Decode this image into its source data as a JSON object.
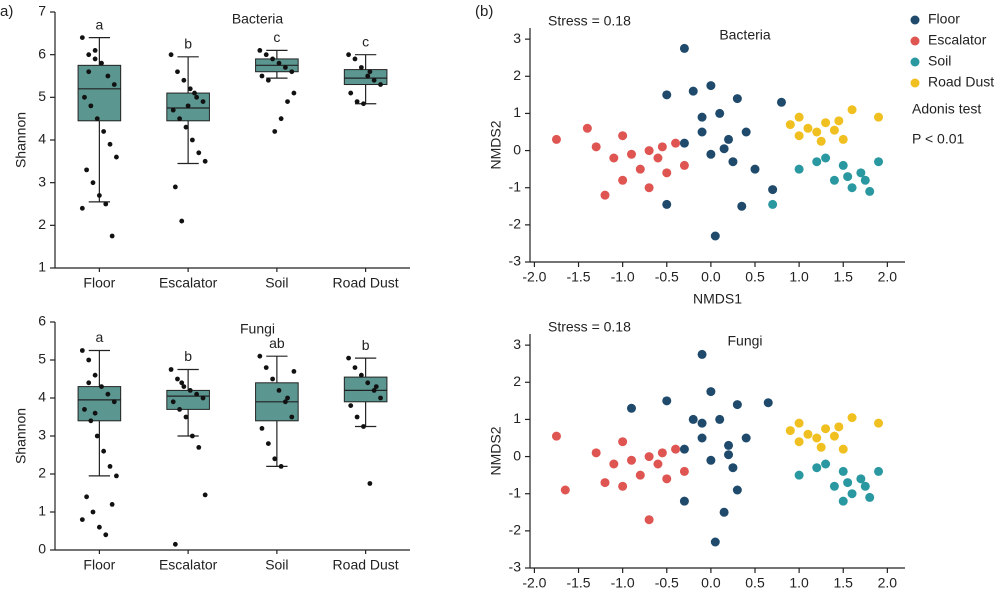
{
  "chart_data": [
    {
      "type": "box",
      "panel": "a)",
      "title": "Bacteria",
      "y_label": "Shannon",
      "categories": [
        "Floor",
        "Escalator",
        "Soil",
        "Road Dust"
      ],
      "ylim": [
        1,
        7
      ],
      "yticks": [
        1,
        2,
        3,
        4,
        5,
        6,
        7
      ],
      "color": "#5b9690",
      "boxes": {
        "whislo": [
          2.55,
          3.45,
          5.45,
          4.85
        ],
        "q1": [
          4.45,
          4.45,
          5.6,
          5.3
        ],
        "median": [
          5.2,
          4.75,
          5.75,
          5.45
        ],
        "q3": [
          5.75,
          5.1,
          5.9,
          5.65
        ],
        "whishi": [
          6.4,
          5.95,
          6.1,
          6.0
        ]
      },
      "letters": [
        "a",
        "b",
        "c",
        "c"
      ],
      "points": [
        [
          6.4,
          6.0,
          5.9,
          5.8,
          5.5,
          5.3,
          5.0,
          4.8,
          4.5,
          4.2,
          3.9,
          3.6,
          3.3,
          3.0,
          2.7,
          2.5,
          1.75,
          2.4,
          5.6,
          6.1
        ],
        [
          6.0,
          5.6,
          5.4,
          5.2,
          5.0,
          4.9,
          4.7,
          4.5,
          4.3,
          4.0,
          3.7,
          3.5,
          2.9,
          2.1,
          4.8,
          5.1
        ],
        [
          6.1,
          6.0,
          5.9,
          5.8,
          5.7,
          5.6,
          5.5,
          5.4,
          4.2,
          4.5,
          4.9,
          5.1
        ],
        [
          6.0,
          5.9,
          5.7,
          5.5,
          5.4,
          5.3,
          5.1,
          4.9,
          4.85,
          5.6
        ]
      ]
    },
    {
      "type": "box",
      "title": "Fungi",
      "y_label": "Shannon",
      "categories": [
        "Floor",
        "Escalator",
        "Soil",
        "Road Dust"
      ],
      "ylim": [
        0,
        6
      ],
      "yticks": [
        0,
        1,
        2,
        3,
        4,
        5,
        6
      ],
      "color": "#5b9690",
      "boxes": {
        "whislo": [
          1.95,
          3.0,
          2.2,
          3.25
        ],
        "q1": [
          3.4,
          3.7,
          3.4,
          3.9
        ],
        "median": [
          3.95,
          4.05,
          3.9,
          4.2
        ],
        "q3": [
          4.3,
          4.2,
          4.4,
          4.55
        ],
        "whishi": [
          5.25,
          4.75,
          5.1,
          5.05
        ]
      },
      "letters": [
        "a",
        "b",
        "ab",
        "b"
      ],
      "points": [
        [
          5.25,
          5.0,
          4.6,
          4.3,
          4.1,
          3.9,
          3.7,
          3.4,
          3.0,
          2.6,
          2.2,
          1.95,
          1.4,
          1.0,
          0.6,
          0.4,
          1.2,
          0.8,
          4.4,
          3.6
        ],
        [
          4.75,
          4.5,
          4.3,
          4.2,
          4.1,
          4.0,
          3.9,
          3.7,
          3.5,
          3.0,
          2.7,
          1.45,
          0.15,
          4.4
        ],
        [
          5.1,
          4.8,
          4.5,
          4.2,
          3.9,
          3.5,
          3.2,
          2.8,
          2.4,
          2.2,
          4.0,
          4.7
        ],
        [
          5.05,
          4.8,
          4.6,
          4.4,
          4.2,
          4.0,
          3.8,
          3.5,
          3.25,
          1.75,
          4.3
        ]
      ]
    },
    {
      "type": "scatter",
      "panel": "(b)",
      "title": "Bacteria",
      "annotation": "Stress = 0.18",
      "x_label": "NMDS1",
      "y_label": "NMDS2",
      "xlim": [
        -2.05,
        2.2
      ],
      "ylim": [
        -3,
        3.3
      ],
      "xticks": [
        {
          "value": -2,
          "label": "-2.0"
        },
        {
          "value": -1.5,
          "label": "-1.5"
        },
        {
          "value": -1,
          "label": "-1.0"
        },
        {
          "value": -0.5,
          "label": "-0.5"
        },
        {
          "value": 0,
          "label": "0.0"
        },
        {
          "value": 0.5,
          "label": "0.5"
        },
        {
          "value": 1,
          "label": "1.0"
        },
        {
          "value": 1.5,
          "label": "1.5"
        },
        {
          "value": 2,
          "label": "2.0"
        }
      ],
      "yticks": [
        -3,
        -2,
        -1,
        0,
        1,
        2,
        3
      ],
      "legend": "outside-right",
      "legend_notes": [
        "Adonis test",
        "P < 0.01"
      ],
      "series": [
        {
          "name": "Floor",
          "color": "#1f4a6b",
          "x": [
            -0.3,
            -0.5,
            -0.2,
            0.0,
            0.1,
            0.3,
            -0.1,
            0.2,
            0.4,
            -0.3,
            0.0,
            0.25,
            0.5,
            0.35,
            0.05,
            0.7,
            -0.5,
            0.8,
            -0.1,
            0.15
          ],
          "values": [
            2.75,
            1.5,
            1.6,
            1.75,
            1.0,
            1.4,
            0.5,
            0.3,
            0.5,
            0.2,
            -0.1,
            -0.3,
            -0.5,
            -1.5,
            -2.3,
            -1.05,
            -1.45,
            1.3,
            0.9,
            0.05
          ]
        },
        {
          "name": "Escalator",
          "color": "#de5552",
          "x": [
            -1.75,
            -1.4,
            -1.3,
            -1.1,
            -1.2,
            -1.0,
            -0.9,
            -0.8,
            -0.7,
            -0.6,
            -0.5,
            -0.4,
            -0.3,
            -0.7,
            -1.0,
            -0.55
          ],
          "values": [
            0.3,
            0.6,
            0.1,
            -0.2,
            -1.2,
            0.4,
            -0.1,
            -0.5,
            0.0,
            -0.2,
            -0.6,
            0.2,
            -0.4,
            -1.0,
            -0.8,
            0.1
          ]
        },
        {
          "name": "Soil",
          "color": "#2a98a0",
          "x": [
            1.0,
            1.2,
            1.4,
            1.5,
            1.6,
            1.7,
            1.8,
            1.9,
            1.3,
            1.75,
            1.55,
            0.7
          ],
          "values": [
            -0.5,
            -0.3,
            -0.8,
            -0.4,
            -1.0,
            -0.6,
            -1.1,
            -0.3,
            -0.2,
            -0.8,
            -0.7,
            -1.45
          ]
        },
        {
          "name": "Road Dust",
          "color": "#f0c020",
          "x": [
            0.9,
            1.0,
            1.1,
            1.2,
            1.3,
            1.4,
            1.6,
            1.9,
            1.5,
            1.0,
            1.25,
            1.45
          ],
          "values": [
            0.7,
            0.4,
            0.6,
            0.5,
            0.75,
            0.55,
            1.1,
            0.9,
            0.3,
            0.9,
            0.25,
            0.8
          ]
        }
      ]
    },
    {
      "type": "scatter",
      "title": "Fungi",
      "annotation": "Stress = 0.18",
      "y_label": "NMDS2",
      "xlim": [
        -2.05,
        2.2
      ],
      "ylim": [
        -3,
        3.3
      ],
      "xticks": [
        {
          "value": -2,
          "label": "-2.0"
        },
        {
          "value": -1.5,
          "label": "-1.5"
        },
        {
          "value": -1,
          "label": "-1.0"
        },
        {
          "value": -0.5,
          "label": "-0.5"
        },
        {
          "value": 0,
          "label": "0.0"
        },
        {
          "value": 0.5,
          "label": "0.5"
        },
        {
          "value": 1,
          "label": "1.0"
        },
        {
          "value": 1.5,
          "label": "1.5"
        },
        {
          "value": 2,
          "label": "2.0"
        }
      ],
      "yticks": [
        -3,
        -2,
        -1,
        0,
        1,
        2,
        3
      ],
      "series": [
        {
          "color": "#1f4a6b",
          "x": [
            -0.1,
            -0.5,
            -0.2,
            0.0,
            0.1,
            0.3,
            -0.1,
            0.2,
            0.4,
            -0.3,
            0.0,
            0.25,
            0.3,
            0.05,
            0.15,
            -0.3,
            -0.9,
            0.65,
            -0.1,
            0.2
          ],
          "values": [
            2.75,
            1.5,
            1.0,
            1.75,
            1.0,
            1.4,
            0.5,
            0.3,
            0.5,
            0.2,
            -0.1,
            -0.3,
            -0.9,
            -2.3,
            -1.5,
            -1.2,
            1.3,
            1.45,
            0.9,
            0.05
          ]
        },
        {
          "color": "#de5552",
          "x": [
            -1.75,
            -1.65,
            -1.3,
            -1.1,
            -1.2,
            -1.0,
            -0.9,
            -0.8,
            -0.7,
            -0.6,
            -0.5,
            -0.4,
            -0.3,
            -0.7,
            -1.0,
            -0.55
          ],
          "values": [
            0.55,
            -0.9,
            0.1,
            -0.2,
            -0.7,
            0.4,
            -0.1,
            -0.5,
            0.0,
            -0.2,
            -0.6,
            0.2,
            -0.4,
            -1.7,
            -0.8,
            0.1
          ]
        },
        {
          "color": "#2a98a0",
          "x": [
            1.0,
            1.2,
            1.4,
            1.5,
            1.6,
            1.7,
            1.8,
            1.9,
            1.3,
            1.75,
            1.55,
            1.5
          ],
          "values": [
            -0.5,
            -0.3,
            -0.8,
            -0.4,
            -1.0,
            -0.6,
            -1.1,
            -0.4,
            -0.2,
            -0.8,
            -0.7,
            -1.2
          ]
        },
        {
          "color": "#f0c020",
          "x": [
            0.9,
            1.0,
            1.1,
            1.2,
            1.3,
            1.4,
            1.6,
            1.9,
            1.5,
            1.0,
            1.25,
            1.45
          ],
          "values": [
            0.7,
            0.4,
            0.6,
            0.5,
            0.75,
            0.55,
            1.05,
            0.9,
            0.2,
            0.9,
            0.25,
            0.8
          ]
        }
      ]
    }
  ]
}
